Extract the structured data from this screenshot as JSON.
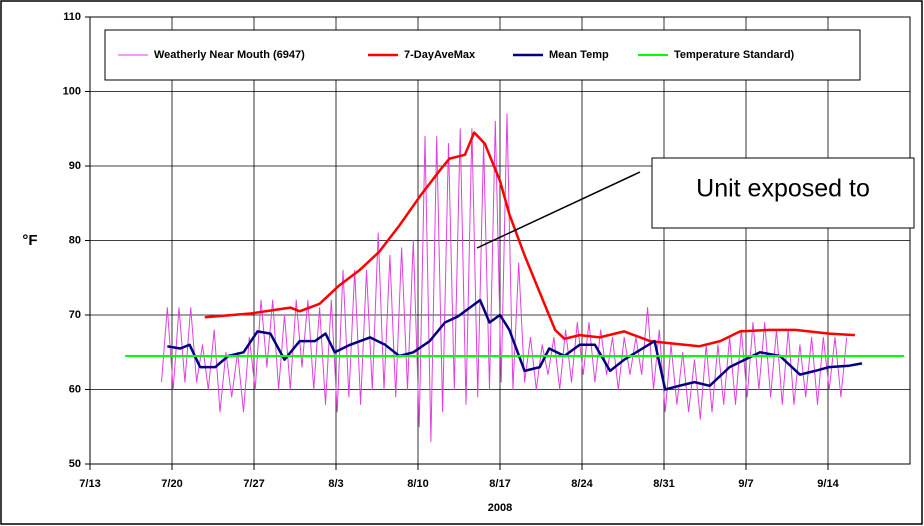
{
  "chart_data": {
    "type": "line",
    "y_label": "°F",
    "x_label": "2008",
    "xlim": [
      0,
      70
    ],
    "ylim": [
      50,
      110
    ],
    "yticks": [
      50,
      60,
      70,
      80,
      90,
      100,
      110
    ],
    "xticks": [
      {
        "value": 0,
        "label": "7/13"
      },
      {
        "value": 7,
        "label": "7/20"
      },
      {
        "value": 14,
        "label": "7/27"
      },
      {
        "value": 21,
        "label": "8/3"
      },
      {
        "value": 28,
        "label": "8/10"
      },
      {
        "value": 35,
        "label": "8/17"
      },
      {
        "value": 42,
        "label": "8/24"
      },
      {
        "value": 49,
        "label": "8/31"
      },
      {
        "value": 56,
        "label": "9/7"
      },
      {
        "value": 63,
        "label": "9/14"
      }
    ],
    "grid": true,
    "annotation": "Unit exposed to",
    "series": [
      {
        "name": "Weatherly Near Mouth (6947)",
        "color": "#e040e0",
        "width": 1,
        "x": [
          6.1,
          6.6,
          7.1,
          7.6,
          8.1,
          8.6,
          9.1,
          9.6,
          10.1,
          10.6,
          11.1,
          11.6,
          12.1,
          12.6,
          13.1,
          13.6,
          14.1,
          14.6,
          15.1,
          15.6,
          16.1,
          16.6,
          17.1,
          17.6,
          18.1,
          18.6,
          19.1,
          19.6,
          20.1,
          20.6,
          21.1,
          21.6,
          22.1,
          22.6,
          23.1,
          23.6,
          24.1,
          24.6,
          25.1,
          25.6,
          26.1,
          26.6,
          27.1,
          27.6,
          28.1,
          28.6,
          29.1,
          29.6,
          30.1,
          30.6,
          31.1,
          31.6,
          32.1,
          32.6,
          33.1,
          33.6,
          34.1,
          34.6,
          35.1,
          35.6,
          36.1,
          36.6,
          37.1,
          37.6,
          38.1,
          38.6,
          39.1,
          39.6,
          40.1,
          40.6,
          41.1,
          41.6,
          42.1,
          42.6,
          43.1,
          43.6,
          44.1,
          44.6,
          45.1,
          45.6,
          46.1,
          46.6,
          47.1,
          47.6,
          48.1,
          48.6,
          49.1,
          49.6,
          50.1,
          50.6,
          51.1,
          51.6,
          52.1,
          52.6,
          53.1,
          53.6,
          54.1,
          54.6,
          55.1,
          55.6,
          56.1,
          56.6,
          57.1,
          57.6,
          58.1,
          58.6,
          59.1,
          59.6,
          60.1,
          60.6,
          61.1,
          61.6,
          62.1,
          62.6,
          63.1,
          63.6,
          64.1,
          64.6
        ],
        "values": [
          61,
          71,
          60,
          71,
          61,
          71,
          61,
          66,
          60,
          68,
          57,
          65,
          59,
          65,
          57,
          67,
          60,
          72,
          63,
          72,
          60,
          70,
          60,
          72,
          63,
          72,
          60,
          71,
          58,
          72,
          57,
          76,
          59,
          76,
          58,
          76,
          60,
          81,
          60,
          78,
          59,
          79,
          60,
          80,
          55,
          94,
          53,
          94,
          57,
          93,
          60,
          95,
          58,
          95,
          59,
          93,
          60,
          96,
          61,
          97,
          60,
          77,
          61,
          67,
          60,
          66,
          62,
          67,
          60,
          68,
          61,
          69,
          62,
          69,
          61,
          68,
          62,
          67,
          60,
          67,
          62,
          67,
          62,
          71,
          60,
          68,
          57,
          66,
          58,
          65,
          57,
          64,
          56,
          66,
          57,
          66,
          58,
          67,
          58,
          68,
          59,
          69,
          60,
          69,
          59,
          68,
          58,
          68,
          58,
          66,
          59,
          67,
          58,
          67,
          60,
          67,
          59,
          67
        ]
      },
      {
        "name": "7-DayAveMax",
        "color": "#ff0000",
        "width": 2.5,
        "x": [
          9.8,
          13.7,
          17.1,
          17.9,
          19.6,
          21.3,
          23.0,
          24.7,
          26.4,
          28.2,
          29.9,
          30.7,
          32.0,
          32.8,
          33.7,
          35.0,
          35.8,
          37.1,
          38.4,
          39.7,
          40.5,
          41.8,
          43.5,
          45.6,
          47.8,
          49.5,
          52.0,
          53.8,
          55.5,
          58.0,
          60.2,
          63.1,
          65.3
        ],
        "values": [
          69.7,
          70.2,
          71,
          70.5,
          71.5,
          74,
          76,
          78.5,
          82,
          86,
          89.5,
          91,
          91.5,
          94.5,
          93,
          88,
          83.5,
          78,
          73,
          68,
          66.8,
          67.3,
          67,
          67.8,
          66.5,
          66.2,
          65.8,
          66.5,
          67.8,
          68,
          68,
          67.5,
          67.3
        ]
      },
      {
        "name": "Mean Temp",
        "color": "#000080",
        "width": 2.5,
        "x": [
          6.6,
          7.7,
          8.5,
          9.4,
          10.7,
          11.8,
          13.1,
          14.3,
          15.4,
          16.6,
          17.9,
          19.2,
          20.1,
          20.9,
          22.2,
          23.9,
          25.2,
          26.4,
          27.6,
          29.0,
          30.3,
          31.4,
          33.3,
          34.1,
          35.0,
          35.8,
          37.1,
          38.4,
          39.2,
          40.5,
          41.8,
          43.1,
          44.4,
          45.6,
          48.2,
          49.1,
          50.3,
          51.6,
          52.9,
          54.6,
          57.2,
          58.9,
          60.6,
          61.9,
          63.1,
          64.8,
          65.9
        ],
        "values": [
          65.8,
          65.5,
          66,
          63,
          63,
          64.5,
          65,
          67.8,
          67.5,
          64,
          66.5,
          66.5,
          67.5,
          65,
          66,
          67,
          66,
          64.5,
          65,
          66.5,
          69,
          69.8,
          72,
          69,
          70,
          68,
          62.5,
          63,
          65.5,
          64.5,
          66,
          66,
          62.5,
          64,
          66.5,
          60,
          60.5,
          61,
          60.5,
          63,
          65,
          64.5,
          62,
          62.5,
          63,
          63.2,
          63.5
        ]
      },
      {
        "name": "Temperature Standard)",
        "color": "#00ff00",
        "width": 2,
        "x": [
          3,
          69.5
        ],
        "values": [
          64.5,
          64.5
        ]
      }
    ]
  }
}
